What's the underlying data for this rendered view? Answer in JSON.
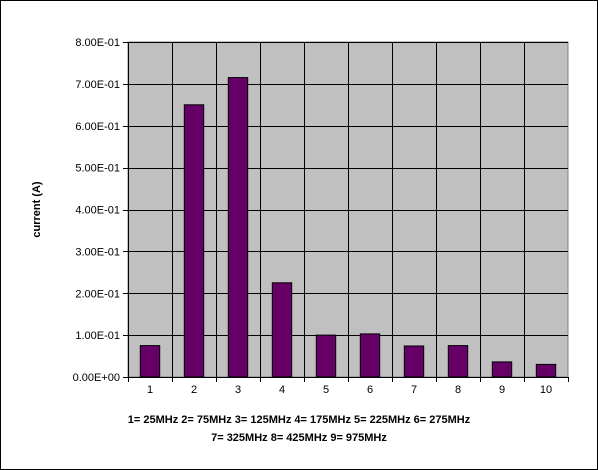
{
  "chart_data": {
    "type": "bar",
    "title": "",
    "xlabel": "",
    "ylabel": "current (A)",
    "categories": [
      "1",
      "2",
      "3",
      "4",
      "5",
      "6",
      "7",
      "8",
      "9",
      "10"
    ],
    "values": [
      0.075,
      0.65,
      0.715,
      0.225,
      0.1,
      0.103,
      0.074,
      0.075,
      0.036,
      0.03
    ],
    "ylim": [
      0,
      0.8
    ],
    "yticks": [
      0,
      0.1,
      0.2,
      0.3,
      0.4,
      0.5,
      0.6,
      0.7,
      0.8
    ],
    "ytick_labels": [
      "0.00E+00",
      "1.00E-01",
      "2.00E-01",
      "3.00E-01",
      "4.00E-01",
      "5.00E-01",
      "6.00E-01",
      "7.00E-01",
      "8.00E-01"
    ],
    "grid": true,
    "legend": "none",
    "colors": {
      "bar": "#660066",
      "plot_background": "#c0c0c0",
      "gridline": "#000000"
    },
    "annotations": [
      "1= 25MHz 2= 75MHz 3= 125MHz 4= 175MHz 5= 225MHz 6= 275MHz",
      "7= 325MHz 8= 425MHz 9= 975MHz"
    ]
  }
}
